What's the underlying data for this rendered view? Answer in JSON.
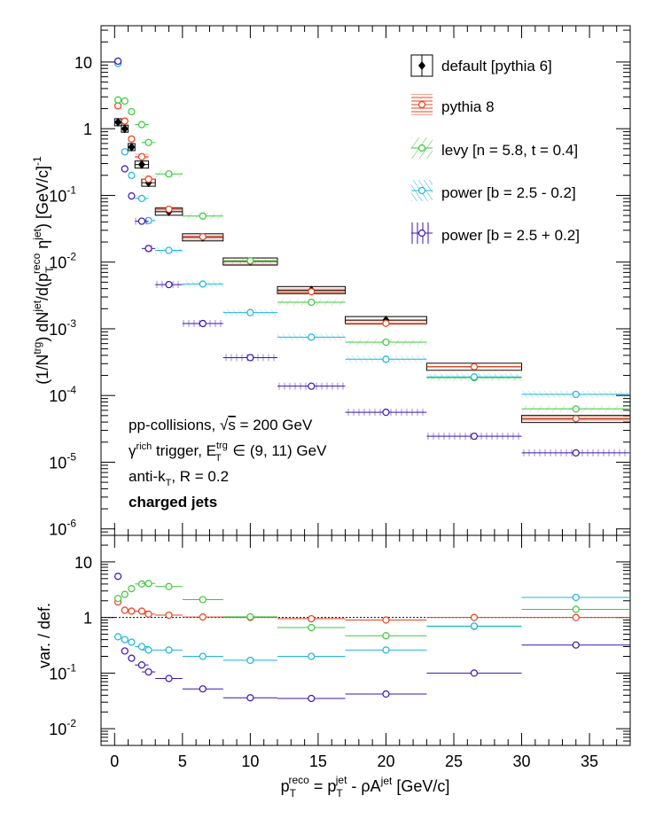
{
  "chart_data": [
    {
      "type": "scatter",
      "panel": "top",
      "ylabel_parts": {
        "a": "(1/N",
        "trg_sup": "trg",
        "b": ") dN",
        "jet_sup": "jet",
        "c": "/d(p",
        "T_sub": "T",
        "reco_sup": "reco",
        "d": " η",
        "jet_sup2": "jet",
        "e": ") [GeV/c]",
        "minus1_sup": "-1"
      },
      "yscale": "log",
      "ylim": [
        8e-07,
        35
      ],
      "y_ticks": [
        {
          "v": 1e-06,
          "label": "10",
          "exp": "-6"
        },
        {
          "v": 1e-05,
          "label": "10",
          "exp": "-5"
        },
        {
          "v": 0.0001,
          "label": "10",
          "exp": "-4"
        },
        {
          "v": 0.001,
          "label": "10",
          "exp": "-3"
        },
        {
          "v": 0.01,
          "label": "10",
          "exp": "-2"
        },
        {
          "v": 0.1,
          "label": "10",
          "exp": "-1"
        },
        {
          "v": 1,
          "label": "1",
          "exp": ""
        },
        {
          "v": 10,
          "label": "10",
          "exp": ""
        }
      ],
      "legend_position": "top-right",
      "annotations": {
        "line1": "pp-collisions, ",
        "line1_sqrt": "√",
        "line1_s": "s",
        "line1_val": " = 200 GeV",
        "line2_gamma": "γ",
        "line2_rich": "rich",
        "line2_trigger": " trigger, E",
        "line2_trg": "trg",
        "line2_T": "T",
        "line2_range": " ∈ (9, 11) GeV",
        "line3_a": "anti-k",
        "line3_T": "T",
        "line3_b": ", R = 0.2",
        "line4": "charged jets"
      },
      "series": [
        {
          "name": "default [pythia 6]",
          "color": "#000000",
          "marker": "filled-diamond",
          "error_band": "box",
          "points": [
            {
              "x": 0.25,
              "x_err": 0.25,
              "y": 1.25
            },
            {
              "x": 0.75,
              "x_err": 0.25,
              "y": 1.0
            },
            {
              "x": 1.25,
              "x_err": 0.25,
              "y": 0.53
            },
            {
              "x": 2.0,
              "x_err": 0.5,
              "y": 0.29
            },
            {
              "x": 2.5,
              "x_err": 0.5,
              "y": 0.155
            },
            {
              "x": 4.0,
              "x_err": 1.0,
              "y": 0.057
            },
            {
              "x": 6.5,
              "x_err": 1.5,
              "y": 0.0235
            },
            {
              "x": 10.0,
              "x_err": 2.0,
              "y": 0.0102
            },
            {
              "x": 14.5,
              "x_err": 2.5,
              "y": 0.0038
            },
            {
              "x": 20.0,
              "x_err": 3.0,
              "y": 0.00135
            },
            {
              "x": 26.5,
              "x_err": 3.5,
              "y": 0.00027
            },
            {
              "x": 34.0,
              "x_err": 4.0,
              "y": 4.45e-05
            }
          ]
        },
        {
          "name": "pythia 8",
          "color": "#e8401c",
          "marker": "open-circle",
          "error_band": "hatch-horizontal",
          "points": [
            {
              "x": 0.25,
              "x_err": 0.25,
              "y": 2.2
            },
            {
              "x": 0.75,
              "x_err": 0.25,
              "y": 1.3
            },
            {
              "x": 1.25,
              "x_err": 0.25,
              "y": 0.7
            },
            {
              "x": 2.0,
              "x_err": 0.5,
              "y": 0.38
            },
            {
              "x": 2.5,
              "x_err": 0.5,
              "y": 0.175
            },
            {
              "x": 4.0,
              "x_err": 1.0,
              "y": 0.062
            },
            {
              "x": 6.5,
              "x_err": 1.5,
              "y": 0.024
            },
            {
              "x": 10.0,
              "x_err": 2.0,
              "y": 0.0104
            },
            {
              "x": 14.5,
              "x_err": 2.5,
              "y": 0.0036
            },
            {
              "x": 20.0,
              "x_err": 3.0,
              "y": 0.00121
            },
            {
              "x": 26.5,
              "x_err": 3.5,
              "y": 0.00027
            },
            {
              "x": 34.0,
              "x_err": 4.0,
              "y": 4.5e-05
            }
          ]
        },
        {
          "name": "levy [n = 5.8, t = 0.4]",
          "color": "#3cc83c",
          "marker": "open-circle",
          "error_band": "hatch-diagonal",
          "points": [
            {
              "x": 0.25,
              "x_err": 0.25,
              "y": 2.7
            },
            {
              "x": 0.75,
              "x_err": 0.25,
              "y": 2.6
            },
            {
              "x": 1.25,
              "x_err": 0.25,
              "y": 1.8
            },
            {
              "x": 2.0,
              "x_err": 0.5,
              "y": 1.15
            },
            {
              "x": 2.5,
              "x_err": 0.5,
              "y": 0.62
            },
            {
              "x": 4.0,
              "x_err": 1.0,
              "y": 0.21
            },
            {
              "x": 6.5,
              "x_err": 1.5,
              "y": 0.049
            },
            {
              "x": 10.0,
              "x_err": 2.0,
              "y": 0.0105
            },
            {
              "x": 14.5,
              "x_err": 2.5,
              "y": 0.0025
            },
            {
              "x": 20.0,
              "x_err": 3.0,
              "y": 0.00063
            },
            {
              "x": 26.5,
              "x_err": 3.5,
              "y": 0.000185
            },
            {
              "x": 34.0,
              "x_err": 4.0,
              "y": 6.3e-05
            }
          ]
        },
        {
          "name": "power [b = 2.5 - 0.2]",
          "color": "#1eb4dc",
          "marker": "open-circle",
          "error_band": "hatch-diagonal-dense",
          "points": [
            {
              "x": 0.25,
              "x_err": 0.25,
              "y": 9.5
            },
            {
              "x": 0.75,
              "x_err": 0.25,
              "y": 0.45
            },
            {
              "x": 1.25,
              "x_err": 0.25,
              "y": 0.2
            },
            {
              "x": 2.0,
              "x_err": 0.5,
              "y": 0.09
            },
            {
              "x": 2.5,
              "x_err": 0.5,
              "y": 0.042
            },
            {
              "x": 4.0,
              "x_err": 1.0,
              "y": 0.015
            },
            {
              "x": 6.5,
              "x_err": 1.5,
              "y": 0.0047
            },
            {
              "x": 10.0,
              "x_err": 2.0,
              "y": 0.00175
            },
            {
              "x": 14.5,
              "x_err": 2.5,
              "y": 0.00075
            },
            {
              "x": 20.0,
              "x_err": 3.0,
              "y": 0.00035
            },
            {
              "x": 26.5,
              "x_err": 3.5,
              "y": 0.00019
            },
            {
              "x": 34.0,
              "x_err": 4.0,
              "y": 0.000104
            }
          ]
        },
        {
          "name": "power [b = 2.5 + 0.2]",
          "color": "#3c14b4",
          "marker": "open-circle",
          "error_band": "hatch-vertical",
          "points": [
            {
              "x": 0.25,
              "x_err": 0.25,
              "y": 10.3
            },
            {
              "x": 0.75,
              "x_err": 0.25,
              "y": 0.25
            },
            {
              "x": 1.25,
              "x_err": 0.25,
              "y": 0.098
            },
            {
              "x": 2.0,
              "x_err": 0.5,
              "y": 0.041
            },
            {
              "x": 2.5,
              "x_err": 0.5,
              "y": 0.016
            },
            {
              "x": 4.0,
              "x_err": 1.0,
              "y": 0.0046
            },
            {
              "x": 6.5,
              "x_err": 1.5,
              "y": 0.0012
            },
            {
              "x": 10.0,
              "x_err": 2.0,
              "y": 0.00037
            },
            {
              "x": 14.5,
              "x_err": 2.5,
              "y": 0.000138
            },
            {
              "x": 20.0,
              "x_err": 3.0,
              "y": 5.6e-05
            },
            {
              "x": 26.5,
              "x_err": 3.5,
              "y": 2.45e-05
            },
            {
              "x": 34.0,
              "x_err": 4.0,
              "y": 1.38e-05
            }
          ]
        }
      ]
    },
    {
      "type": "scatter",
      "panel": "bottom",
      "ylabel": "var. / def.",
      "yscale": "log",
      "ylim": [
        0.005,
        30
      ],
      "y_ticks": [
        {
          "v": 0.01,
          "label": "10",
          "exp": "-2"
        },
        {
          "v": 0.1,
          "label": "10",
          "exp": "-1"
        },
        {
          "v": 1,
          "label": "1",
          "exp": ""
        },
        {
          "v": 10,
          "label": "10",
          "exp": ""
        }
      ],
      "reference_line": 1,
      "series": [
        {
          "name": "pythia 8",
          "color": "#e8401c",
          "points": [
            {
              "x": 0.25,
              "x_err": 0.25,
              "y": 1.9
            },
            {
              "x": 0.75,
              "x_err": 0.25,
              "y": 1.35
            },
            {
              "x": 1.25,
              "x_err": 0.25,
              "y": 1.3
            },
            {
              "x": 2.0,
              "x_err": 0.5,
              "y": 1.3
            },
            {
              "x": 2.5,
              "x_err": 0.5,
              "y": 1.15
            },
            {
              "x": 4.0,
              "x_err": 1.0,
              "y": 1.1
            },
            {
              "x": 6.5,
              "x_err": 1.5,
              "y": 1.02
            },
            {
              "x": 10.0,
              "x_err": 2.0,
              "y": 1.0
            },
            {
              "x": 14.5,
              "x_err": 2.5,
              "y": 0.95
            },
            {
              "x": 20.0,
              "x_err": 3.0,
              "y": 0.9
            },
            {
              "x": 26.5,
              "x_err": 3.5,
              "y": 1.0
            },
            {
              "x": 34.0,
              "x_err": 4.0,
              "y": 1.0
            }
          ]
        },
        {
          "name": "levy [n = 5.8, t = 0.4]",
          "color": "#3cc83c",
          "points": [
            {
              "x": 0.25,
              "x_err": 0.25,
              "y": 2.2
            },
            {
              "x": 0.75,
              "x_err": 0.25,
              "y": 2.6
            },
            {
              "x": 1.25,
              "x_err": 0.25,
              "y": 3.3
            },
            {
              "x": 2.0,
              "x_err": 0.5,
              "y": 4.0
            },
            {
              "x": 2.5,
              "x_err": 0.5,
              "y": 4.1
            },
            {
              "x": 4.0,
              "x_err": 1.0,
              "y": 3.6
            },
            {
              "x": 6.5,
              "x_err": 1.5,
              "y": 2.1
            },
            {
              "x": 10.0,
              "x_err": 2.0,
              "y": 1.03
            },
            {
              "x": 14.5,
              "x_err": 2.5,
              "y": 0.66
            },
            {
              "x": 20.0,
              "x_err": 3.0,
              "y": 0.47
            },
            {
              "x": 26.5,
              "x_err": 3.5,
              "y": 0.69
            },
            {
              "x": 34.0,
              "x_err": 4.0,
              "y": 1.4
            }
          ]
        },
        {
          "name": "power [b = 2.5 - 0.2]",
          "color": "#1eb4dc",
          "points": [
            {
              "x": 0.25,
              "x_err": 0.25,
              "y": 0.45
            },
            {
              "x": 0.75,
              "x_err": 0.25,
              "y": 0.4
            },
            {
              "x": 1.25,
              "x_err": 0.25,
              "y": 0.36
            },
            {
              "x": 2.0,
              "x_err": 0.5,
              "y": 0.3
            },
            {
              "x": 2.5,
              "x_err": 0.5,
              "y": 0.26
            },
            {
              "x": 4.0,
              "x_err": 1.0,
              "y": 0.26
            },
            {
              "x": 6.5,
              "x_err": 1.5,
              "y": 0.2
            },
            {
              "x": 10.0,
              "x_err": 2.0,
              "y": 0.17
            },
            {
              "x": 14.5,
              "x_err": 2.5,
              "y": 0.2
            },
            {
              "x": 20.0,
              "x_err": 3.0,
              "y": 0.26
            },
            {
              "x": 26.5,
              "x_err": 3.5,
              "y": 0.7
            },
            {
              "x": 34.0,
              "x_err": 4.0,
              "y": 2.3
            }
          ]
        },
        {
          "name": "power [b = 2.5 + 0.2]",
          "color": "#3c14b4",
          "points": [
            {
              "x": 0.25,
              "x_err": 0.25,
              "y": 5.5
            },
            {
              "x": 0.75,
              "x_err": 0.25,
              "y": 0.25
            },
            {
              "x": 1.25,
              "x_err": 0.25,
              "y": 0.185
            },
            {
              "x": 2.0,
              "x_err": 0.5,
              "y": 0.14
            },
            {
              "x": 2.5,
              "x_err": 0.5,
              "y": 0.105
            },
            {
              "x": 4.0,
              "x_err": 1.0,
              "y": 0.08
            },
            {
              "x": 6.5,
              "x_err": 1.5,
              "y": 0.052
            },
            {
              "x": 10.0,
              "x_err": 2.0,
              "y": 0.036
            },
            {
              "x": 14.5,
              "x_err": 2.5,
              "y": 0.035
            },
            {
              "x": 20.0,
              "x_err": 3.0,
              "y": 0.042
            },
            {
              "x": 26.5,
              "x_err": 3.5,
              "y": 0.1
            },
            {
              "x": 34.0,
              "x_err": 4.0,
              "y": 0.32
            }
          ]
        }
      ]
    }
  ],
  "x_axis": {
    "xlim": [
      -1,
      38
    ],
    "ticks": [
      "0",
      "5",
      "10",
      "15",
      "20",
      "25",
      "30",
      "35"
    ],
    "tick_values": [
      0,
      5,
      10,
      15,
      20,
      25,
      30,
      35
    ],
    "label_parts": {
      "p1": "p",
      "T1": "T",
      "reco": "reco",
      "eq": " = p",
      "jet1": "jet",
      "T2": "T",
      "mid": " - ρA",
      "jet2": "jet",
      "unit": " [GeV/c]"
    }
  }
}
